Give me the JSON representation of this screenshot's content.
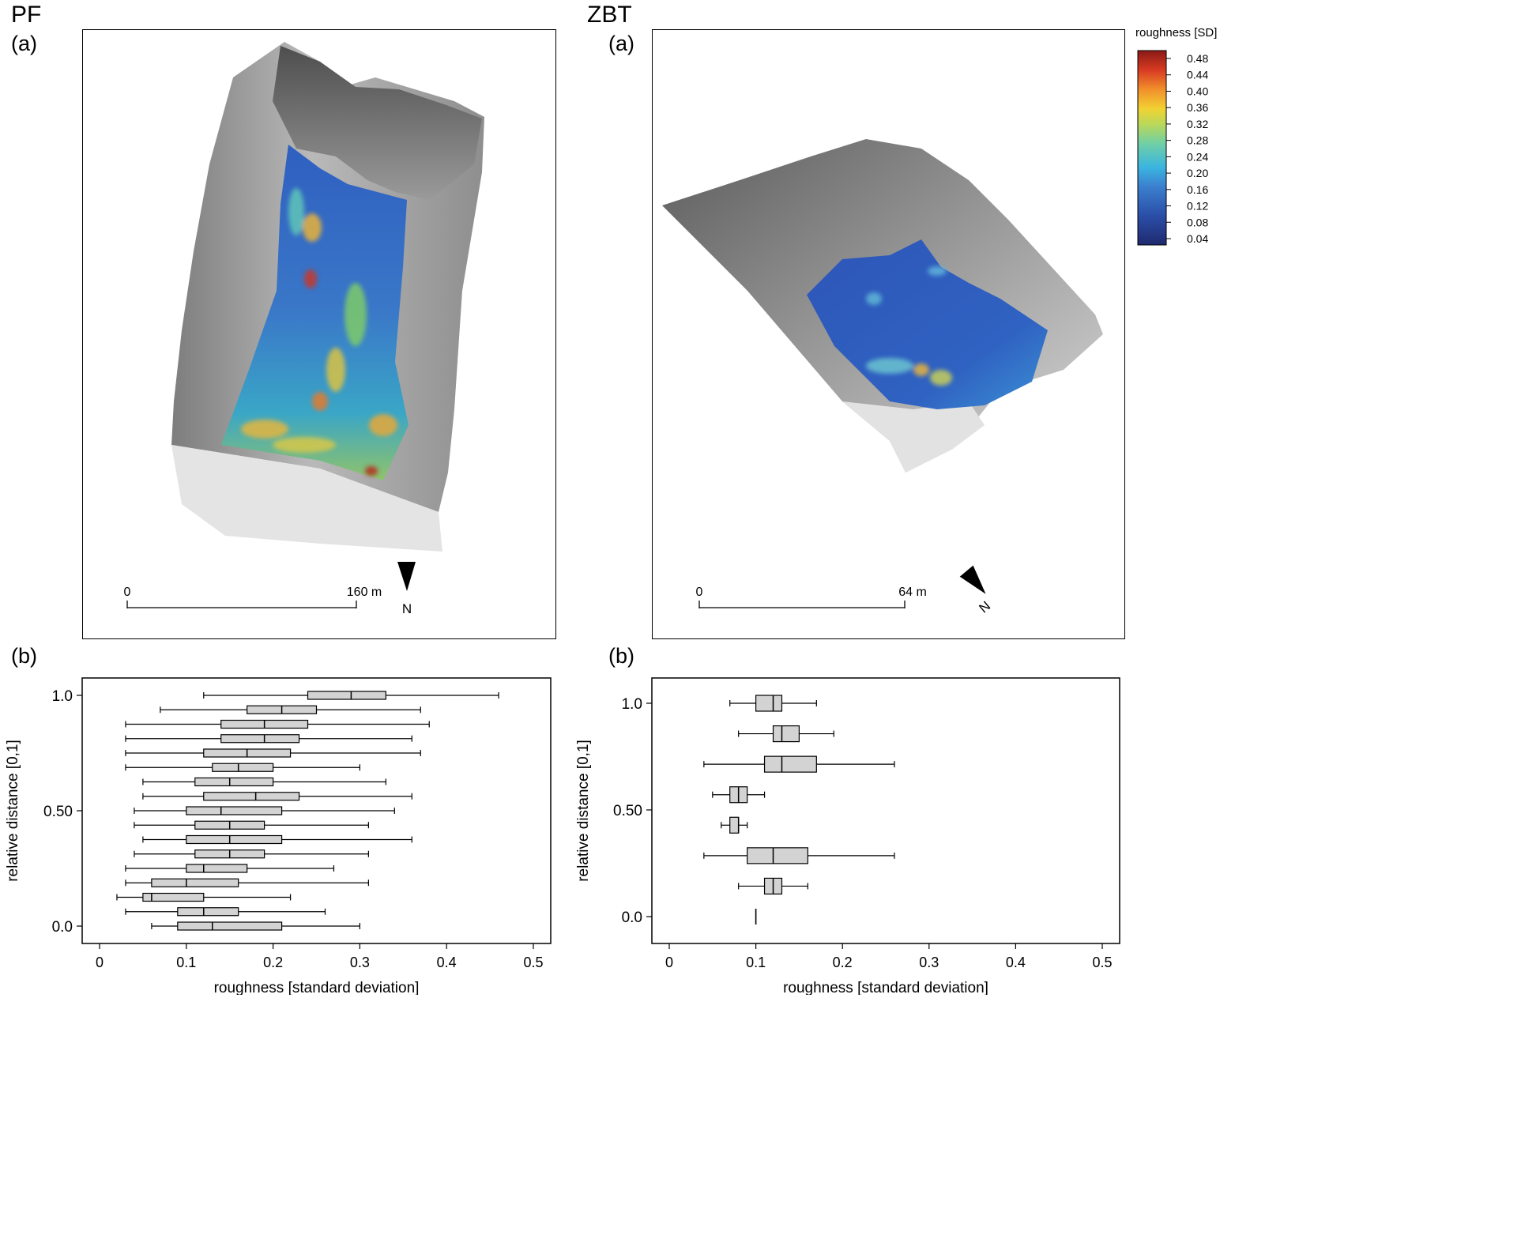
{
  "sites": [
    {
      "title": "PF",
      "map_label": "(a)",
      "plot_label": "(b)",
      "scale": {
        "start": "0",
        "end": "160 m"
      },
      "north": "N"
    },
    {
      "title": "ZBT",
      "map_label": "(a)",
      "plot_label": "(b)",
      "scale": {
        "start": "0",
        "end": "64 m"
      },
      "north": "N"
    }
  ],
  "colorbar": {
    "title": "roughness [SD]",
    "ticks": [
      "0.48",
      "0.44",
      "0.40",
      "0.36",
      "0.32",
      "0.28",
      "0.24",
      "0.20",
      "0.16",
      "0.12",
      "0.08",
      "0.04"
    ]
  },
  "chart_data": [
    {
      "type": "boxplot",
      "xlabel": "roughness [standard deviation]",
      "ylabel": "relative distance [0,1]",
      "xlim": [
        0,
        0.5
      ],
      "x_ticks": [
        "0",
        "0.1",
        "0.2",
        "0.3",
        "0.4",
        "0.5"
      ],
      "y_ticks": [
        {
          "label": "1.0",
          "value": 1.0
        },
        {
          "label": "0.50",
          "value": 0.5
        },
        {
          "label": "0.0",
          "value": 0.0
        }
      ],
      "boxes": [
        {
          "pos": 1.0,
          "whisker_low": 0.12,
          "q1": 0.24,
          "median": 0.29,
          "q3": 0.33,
          "whisker_high": 0.46
        },
        {
          "pos": 0.9375,
          "whisker_low": 0.07,
          "q1": 0.17,
          "median": 0.21,
          "q3": 0.25,
          "whisker_high": 0.37
        },
        {
          "pos": 0.875,
          "whisker_low": 0.03,
          "q1": 0.14,
          "median": 0.19,
          "q3": 0.24,
          "whisker_high": 0.38
        },
        {
          "pos": 0.8125,
          "whisker_low": 0.03,
          "q1": 0.14,
          "median": 0.19,
          "q3": 0.23,
          "whisker_high": 0.36
        },
        {
          "pos": 0.75,
          "whisker_low": 0.03,
          "q1": 0.12,
          "median": 0.17,
          "q3": 0.22,
          "whisker_high": 0.37
        },
        {
          "pos": 0.6875,
          "whisker_low": 0.03,
          "q1": 0.13,
          "median": 0.16,
          "q3": 0.2,
          "whisker_high": 0.3
        },
        {
          "pos": 0.625,
          "whisker_low": 0.05,
          "q1": 0.11,
          "median": 0.15,
          "q3": 0.2,
          "whisker_high": 0.33
        },
        {
          "pos": 0.5625,
          "whisker_low": 0.05,
          "q1": 0.12,
          "median": 0.18,
          "q3": 0.23,
          "whisker_high": 0.36
        },
        {
          "pos": 0.5,
          "whisker_low": 0.04,
          "q1": 0.1,
          "median": 0.14,
          "q3": 0.21,
          "whisker_high": 0.34
        },
        {
          "pos": 0.4375,
          "whisker_low": 0.04,
          "q1": 0.11,
          "median": 0.15,
          "q3": 0.19,
          "whisker_high": 0.31
        },
        {
          "pos": 0.375,
          "whisker_low": 0.05,
          "q1": 0.1,
          "median": 0.15,
          "q3": 0.21,
          "whisker_high": 0.36
        },
        {
          "pos": 0.3125,
          "whisker_low": 0.04,
          "q1": 0.11,
          "median": 0.15,
          "q3": 0.19,
          "whisker_high": 0.31
        },
        {
          "pos": 0.25,
          "whisker_low": 0.03,
          "q1": 0.1,
          "median": 0.12,
          "q3": 0.17,
          "whisker_high": 0.27
        },
        {
          "pos": 0.1875,
          "whisker_low": 0.03,
          "q1": 0.06,
          "median": 0.1,
          "q3": 0.16,
          "whisker_high": 0.31
        },
        {
          "pos": 0.125,
          "whisker_low": 0.02,
          "q1": 0.05,
          "median": 0.06,
          "q3": 0.12,
          "whisker_high": 0.22
        },
        {
          "pos": 0.0625,
          "whisker_low": 0.03,
          "q1": 0.09,
          "median": 0.12,
          "q3": 0.16,
          "whisker_high": 0.26
        },
        {
          "pos": 0.0,
          "whisker_low": 0.06,
          "q1": 0.09,
          "median": 0.13,
          "q3": 0.21,
          "whisker_high": 0.3
        }
      ]
    },
    {
      "type": "boxplot",
      "xlabel": "roughness [standard deviation]",
      "ylabel": "relative distance [0,1]",
      "xlim": [
        0,
        0.5
      ],
      "x_ticks": [
        "0",
        "0.1",
        "0.2",
        "0.3",
        "0.4",
        "0.5"
      ],
      "y_ticks": [
        {
          "label": "1.0",
          "value": 1.0
        },
        {
          "label": "0.50",
          "value": 0.5
        },
        {
          "label": "0.0",
          "value": 0.0
        }
      ],
      "boxes": [
        {
          "pos": 1.0,
          "whisker_low": 0.07,
          "q1": 0.1,
          "median": 0.12,
          "q3": 0.13,
          "whisker_high": 0.17
        },
        {
          "pos": 0.8571,
          "whisker_low": 0.08,
          "q1": 0.12,
          "median": 0.13,
          "q3": 0.15,
          "whisker_high": 0.19
        },
        {
          "pos": 0.7143,
          "whisker_low": 0.04,
          "q1": 0.11,
          "median": 0.13,
          "q3": 0.17,
          "whisker_high": 0.26
        },
        {
          "pos": 0.5714,
          "whisker_low": 0.05,
          "q1": 0.07,
          "median": 0.08,
          "q3": 0.09,
          "whisker_high": 0.11
        },
        {
          "pos": 0.4286,
          "whisker_low": 0.06,
          "q1": 0.07,
          "median": 0.08,
          "q3": 0.08,
          "whisker_high": 0.09
        },
        {
          "pos": 0.2857,
          "whisker_low": 0.04,
          "q1": 0.09,
          "median": 0.12,
          "q3": 0.16,
          "whisker_high": 0.26
        },
        {
          "pos": 0.1429,
          "whisker_low": 0.08,
          "q1": 0.11,
          "median": 0.12,
          "q3": 0.13,
          "whisker_high": 0.16
        },
        {
          "pos": 0.0,
          "whisker_low": 0.1,
          "q1": 0.1,
          "median": 0.1,
          "q3": 0.1,
          "whisker_high": 0.1
        }
      ]
    }
  ]
}
